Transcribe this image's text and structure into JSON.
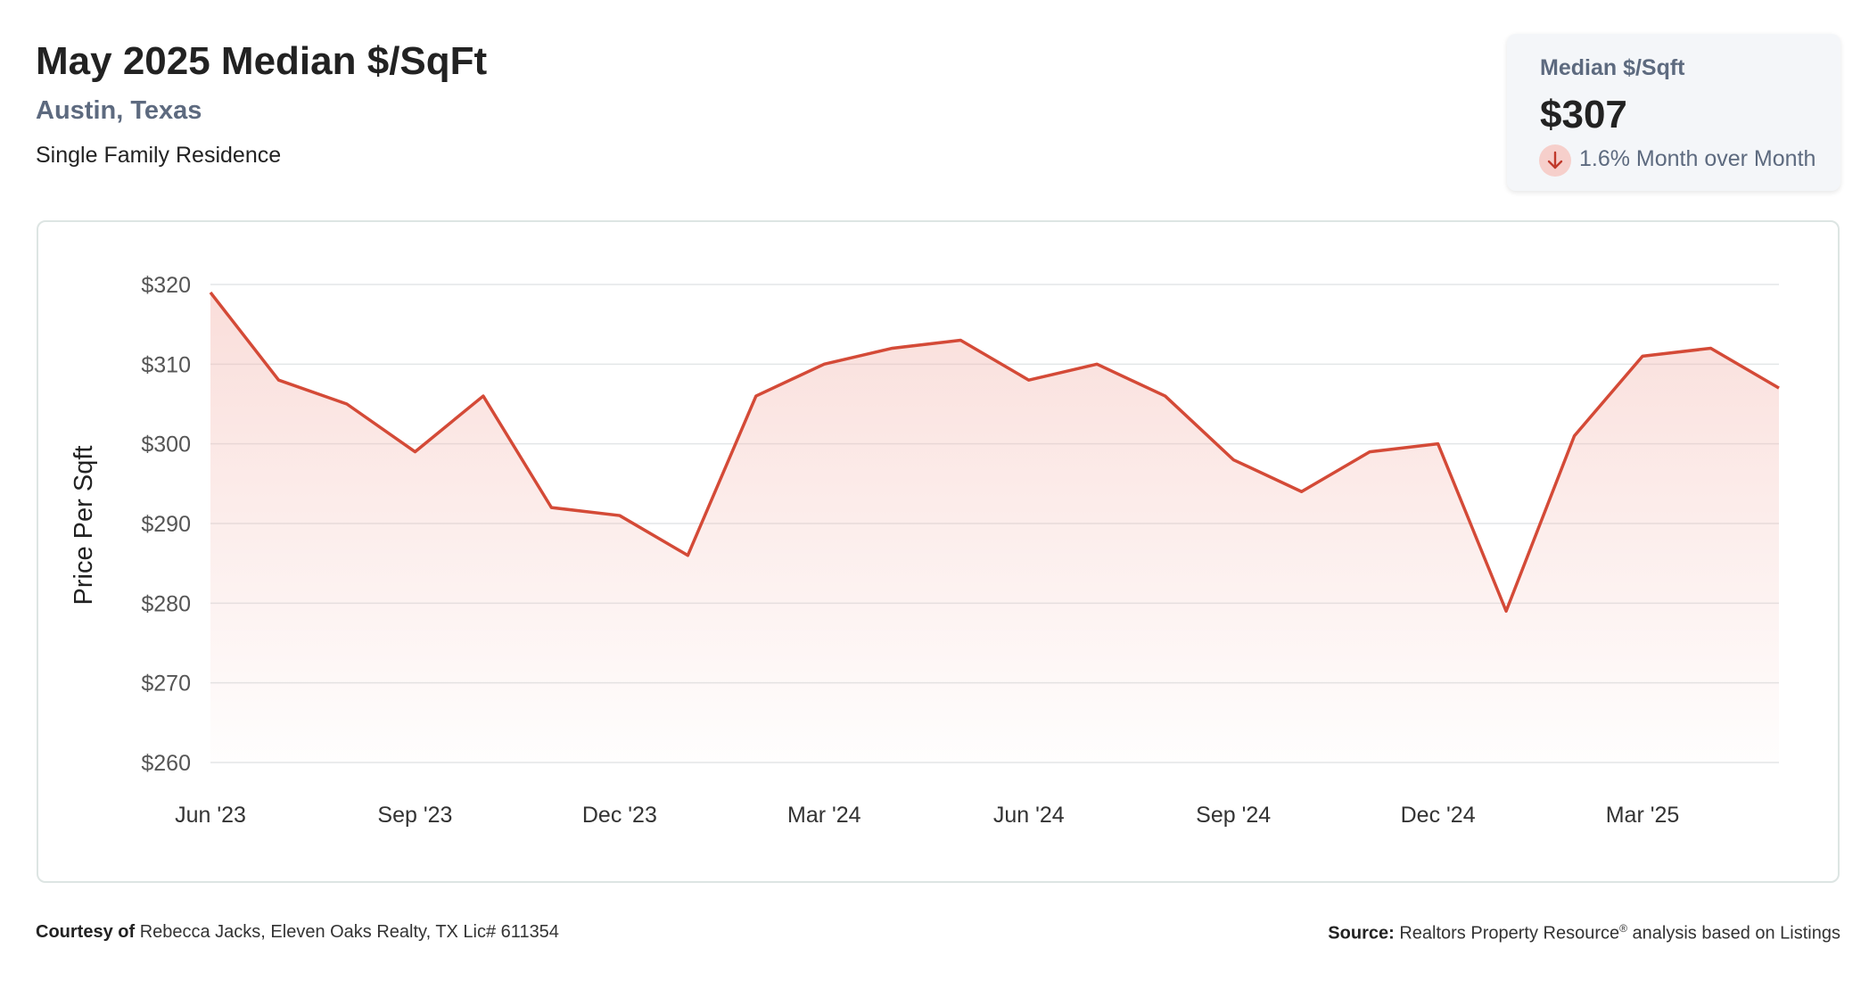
{
  "header": {
    "title": "May 2025 Median $/SqFt",
    "location": "Austin, Texas",
    "property_type": "Single Family Residence"
  },
  "stat_card": {
    "label": "Median $/Sqft",
    "value": "$307",
    "change": "1.6% Month over Month",
    "change_direction": "down",
    "change_icon": "arrow-down-icon"
  },
  "colors": {
    "line": "#d44a37",
    "area_fill": "#f3b5ad",
    "grid": "#e3e6e8",
    "axis_text": "#555555"
  },
  "chart_data": {
    "type": "area",
    "title": "",
    "ylabel": "Price Per Sqft",
    "xlabel": "",
    "ylim": [
      260,
      320
    ],
    "y_ticks": [
      260,
      270,
      280,
      290,
      300,
      310,
      320
    ],
    "y_tick_labels": [
      "$260",
      "$270",
      "$280",
      "$290",
      "$300",
      "$310",
      "$320"
    ],
    "x_tick_labels": [
      "Jun '23",
      "Sep '23",
      "Dec '23",
      "Mar '24",
      "Jun '24",
      "Sep '24",
      "Dec '24",
      "Mar '25"
    ],
    "x_tick_indices": [
      0,
      3,
      6,
      9,
      12,
      15,
      18,
      21
    ],
    "grid": true,
    "legend": "none",
    "series": [
      {
        "x": [
          "2023-06",
          "2023-07",
          "2023-08",
          "2023-09",
          "2023-10",
          "2023-11",
          "2023-12",
          "2024-01",
          "2024-02",
          "2024-03",
          "2024-04",
          "2024-05",
          "2024-06",
          "2024-07",
          "2024-08",
          "2024-09",
          "2024-10",
          "2024-11",
          "2024-12",
          "2025-01",
          "2025-02",
          "2025-03",
          "2025-04",
          "2025-05"
        ],
        "values": [
          319,
          308,
          305,
          299,
          306,
          292,
          291,
          286,
          306,
          310,
          312,
          313,
          308,
          310,
          306,
          298,
          294,
          299,
          300,
          279,
          301,
          311,
          312,
          307
        ]
      }
    ]
  },
  "footer": {
    "courtesy_label": "Courtesy of",
    "courtesy_text": "Rebecca Jacks, Eleven Oaks Realty, TX Lic# 611354",
    "source_label": "Source:",
    "source_text_1": "Realtors Property Resource",
    "source_reg": "®",
    "source_text_2": " analysis based on Listings"
  }
}
